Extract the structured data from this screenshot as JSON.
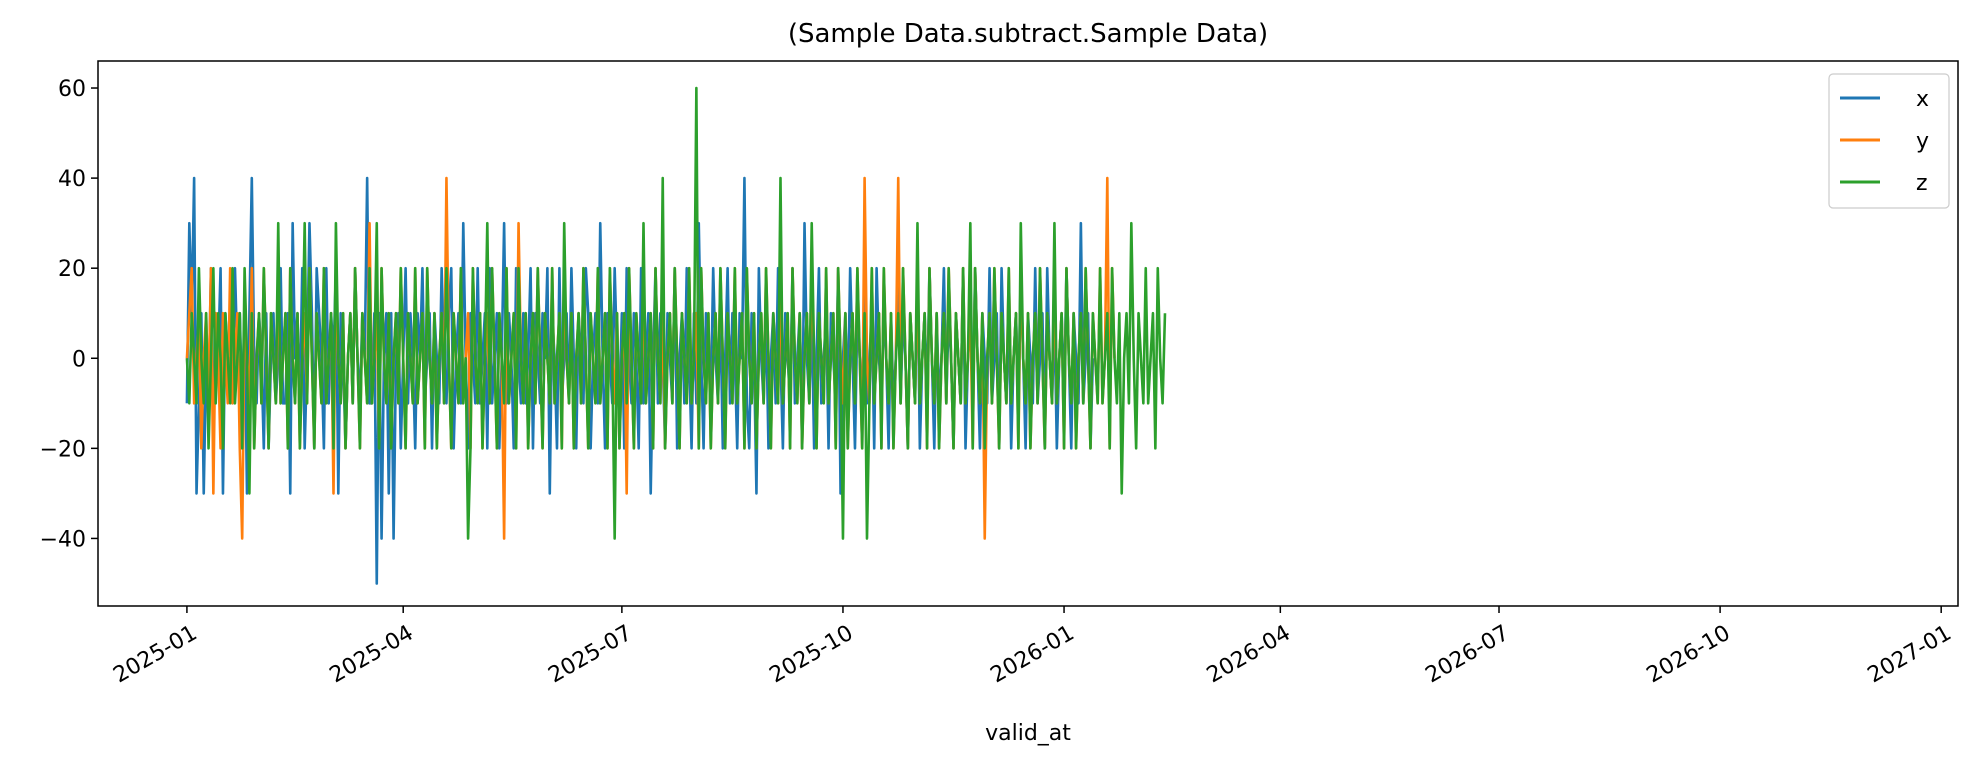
{
  "chart_data": {
    "type": "line",
    "title": "(Sample Data.subtract.Sample Data)",
    "xlabel": "valid_at",
    "ylabel": "",
    "x_start": "2025-01-01",
    "x_end": "2025-12-31",
    "x_frequency": "daily",
    "xlim": [
      "2024-11-25",
      "2027-01-08"
    ],
    "ylim": [
      -55,
      66
    ],
    "x_tick_labels": [
      "2025-01",
      "2025-04",
      "2025-07",
      "2025-10",
      "2026-01",
      "2026-04",
      "2026-07",
      "2026-10",
      "2027-01"
    ],
    "x_tick_dates": [
      "2025-01-01",
      "2025-04-01",
      "2025-07-01",
      "2025-10-01",
      "2026-01-01",
      "2026-04-01",
      "2026-07-01",
      "2026-10-01",
      "2027-01-01"
    ],
    "y_ticks": [
      -40,
      -20,
      0,
      20,
      40,
      60
    ],
    "y_tick_labels": [
      "−40",
      "−20",
      "0",
      "20",
      "40",
      "60"
    ],
    "legend": {
      "position": "top-right",
      "entries": [
        "x",
        "y",
        "z"
      ]
    },
    "grid": false,
    "series": [
      {
        "name": "x",
        "color": "#1f77b4",
        "values": [
          -10,
          30,
          10,
          40,
          -30,
          -10,
          10,
          -30,
          0,
          -10,
          20,
          -20,
          10,
          0,
          20,
          -30,
          10,
          0,
          0,
          -10,
          20,
          0,
          10,
          -10,
          10,
          -30,
          10,
          40,
          0,
          -10,
          10,
          0,
          -20,
          10,
          -20,
          0,
          10,
          -10,
          0,
          20,
          -10,
          -10,
          10,
          -30,
          30,
          0,
          10,
          -10,
          20,
          -20,
          0,
          30,
          10,
          -20,
          20,
          10,
          0,
          -20,
          20,
          -10,
          10,
          0,
          20,
          -30,
          10,
          0,
          -20,
          0,
          10,
          -10,
          20,
          0,
          -10,
          10,
          0,
          40,
          -10,
          -10,
          10,
          -50,
          10,
          -40,
          0,
          10,
          -30,
          10,
          -40,
          0,
          10,
          -20,
          0,
          20,
          -10,
          10,
          0,
          -20,
          10,
          0,
          20,
          -10,
          0,
          10,
          -20,
          10,
          0,
          -10,
          20,
          0,
          -10,
          10,
          20,
          -20,
          0,
          10,
          -10,
          30,
          0,
          -20,
          10,
          0,
          -10,
          20,
          -10,
          0,
          10,
          -20,
          20,
          -10,
          0,
          10,
          -20,
          0,
          30,
          -10,
          10,
          0,
          -20,
          20,
          0,
          -10,
          10,
          -10,
          0,
          20,
          -20,
          10,
          0,
          -10,
          10,
          0,
          20,
          -30,
          10,
          0,
          -20,
          20,
          -10,
          0,
          10,
          -10,
          20,
          0,
          -20,
          10,
          0,
          -10,
          20,
          10,
          -20,
          0,
          10,
          -10,
          30,
          0,
          -20,
          10,
          0,
          -10,
          20,
          0,
          -10,
          10,
          -20,
          20,
          0,
          -10,
          10,
          0,
          -20,
          20,
          -10,
          0,
          10,
          -30,
          0,
          20,
          -10,
          10,
          0,
          -20,
          10,
          0,
          -10,
          20,
          -20,
          0,
          10,
          -10,
          20,
          0,
          -20,
          10,
          -10,
          30,
          0,
          -20,
          10,
          0,
          -10,
          20,
          0,
          -10,
          10,
          -20,
          0,
          20,
          -10,
          10,
          0,
          -20,
          10,
          0,
          40,
          -10,
          -20,
          10,
          0,
          -30,
          20,
          0,
          -10,
          10,
          -20,
          0,
          10,
          -10,
          20,
          0,
          -20,
          10,
          0,
          -10,
          20,
          -10,
          0,
          10,
          -20,
          30,
          0,
          -10,
          10,
          -20,
          0,
          20,
          -10,
          0,
          10,
          -20,
          10,
          0,
          -10,
          20,
          -30,
          0,
          10,
          -10,
          20,
          0,
          -20,
          10,
          0,
          -10,
          20,
          -10,
          0,
          10,
          -20,
          20,
          0,
          -10,
          10,
          0,
          -20,
          10,
          -10,
          0,
          20,
          -10,
          10,
          0,
          -20,
          10,
          0,
          -10,
          20,
          -20,
          0,
          10,
          -10,
          20,
          0,
          -20,
          10,
          -10,
          0,
          20,
          -10,
          10,
          0,
          -20,
          10,
          0,
          -10,
          20,
          -20,
          0,
          10,
          -10,
          20,
          0,
          -20,
          10,
          0,
          -10,
          20,
          -10,
          0,
          10,
          -20,
          20,
          0,
          -10,
          10,
          -20,
          0,
          10,
          -10,
          20,
          0,
          -20,
          10,
          0,
          -10,
          20,
          -10,
          0,
          10,
          -20,
          20,
          0,
          -10,
          10,
          -20,
          0,
          10,
          -10,
          20,
          0,
          -20,
          10,
          0,
          -10,
          30,
          -10,
          0,
          10,
          -20,
          0
        ]
      },
      {
        "name": "y",
        "color": "#ff7f0e",
        "values": [
          0,
          10,
          20,
          -10,
          0,
          10,
          -20,
          0,
          10,
          -10,
          20,
          -30,
          10,
          0,
          -20,
          10,
          0,
          -10,
          20,
          -10,
          0,
          10,
          -20,
          -40,
          10,
          0,
          -10,
          20,
          -20,
          0,
          10,
          -10,
          20,
          0,
          -20,
          10,
          0,
          -10,
          20,
          -10,
          0,
          10,
          -20,
          20,
          0,
          -10,
          10,
          -20,
          0,
          10,
          -10,
          20,
          0,
          -20,
          10,
          0,
          -10,
          20,
          -10,
          0,
          10,
          -30,
          20,
          0,
          -10,
          10,
          -20,
          0,
          10,
          -10,
          20,
          0,
          -20,
          10,
          0,
          -10,
          30,
          -10,
          0,
          10,
          -20,
          20,
          0,
          -10,
          10,
          -20,
          0,
          10,
          -10,
          20,
          0,
          -20,
          10,
          0,
          -10,
          20,
          -10,
          0,
          10,
          -20,
          20,
          0,
          -10,
          10,
          -20,
          0,
          10,
          -10,
          40,
          0,
          -20,
          10,
          0,
          -10,
          20,
          -10,
          0,
          10,
          -20,
          20,
          0,
          -10,
          10,
          -20,
          0,
          10,
          -10,
          20,
          0,
          -20,
          10,
          0,
          -40,
          20,
          -10,
          0,
          10,
          -20,
          30,
          0,
          -10,
          10,
          -20,
          0,
          10,
          -10,
          20,
          0,
          -20,
          10,
          0,
          -10,
          20,
          -10,
          0,
          10,
          -20,
          20,
          0,
          -10,
          10,
          -20,
          0,
          10,
          -10,
          20,
          0,
          -20,
          10,
          0,
          -10,
          20,
          -10,
          0,
          10,
          -20,
          20,
          0,
          -10,
          10,
          -20,
          0,
          10,
          -30,
          20,
          0,
          -20,
          10,
          0,
          -10,
          20,
          -10,
          0,
          10,
          -20,
          20,
          0,
          -10,
          10,
          -20,
          0,
          10,
          -10,
          20,
          0,
          -20,
          10,
          0,
          -10,
          20,
          -10,
          0,
          10,
          -20,
          20,
          0,
          -10,
          10,
          -20,
          0,
          10,
          -10,
          20,
          0,
          -20,
          10,
          0,
          -10,
          20,
          -10,
          0,
          10,
          -20,
          20,
          0,
          -10,
          10,
          -20,
          0,
          10,
          -10,
          20,
          0,
          -20,
          10,
          0,
          -10,
          20,
          -10,
          0,
          10,
          -20,
          20,
          0,
          -10,
          10,
          -20,
          0,
          10,
          -10,
          20,
          0,
          -20,
          10,
          0,
          -10,
          20,
          -10,
          0,
          10,
          -20,
          20,
          0,
          -10,
          10,
          -20,
          0,
          10,
          -10,
          20,
          0,
          -20,
          40,
          0,
          -10,
          20,
          -10,
          0,
          10,
          -20,
          20,
          0,
          -10,
          10,
          -20,
          0,
          40,
          -10,
          20,
          0,
          -20,
          10,
          0,
          -10,
          20,
          -10,
          0,
          10,
          -20,
          20,
          0,
          -10,
          10,
          -20,
          0,
          10,
          -10,
          20,
          0,
          -20,
          10,
          0,
          -10,
          20,
          -10,
          0,
          10,
          -20,
          20,
          0,
          -10,
          10,
          -40,
          0,
          10,
          -10,
          20,
          0,
          -20,
          10,
          0,
          -10,
          20,
          -10,
          0,
          10,
          -20,
          20,
          0,
          -10,
          10,
          -20,
          0,
          10,
          -10,
          20,
          0,
          -20,
          10,
          0,
          -10,
          20,
          -10,
          0,
          10,
          -20,
          20,
          0,
          -10,
          10,
          -20,
          0,
          10,
          -10,
          20,
          0,
          -20,
          10,
          0,
          -10,
          20,
          -10,
          0,
          40,
          -20,
          20,
          0
        ]
      },
      {
        "name": "z",
        "color": "#2ca02c",
        "values": [
          0,
          -10,
          10,
          0,
          -10,
          20,
          0,
          -10,
          10,
          -20,
          0,
          20,
          -10,
          10,
          0,
          -20,
          10,
          0,
          -10,
          20,
          -10,
          0,
          10,
          -20,
          20,
          0,
          -30,
          10,
          -20,
          0,
          10,
          -10,
          20,
          0,
          -20,
          10,
          0,
          -10,
          30,
          -10,
          0,
          10,
          -20,
          20,
          0,
          -10,
          10,
          -20,
          0,
          30,
          -10,
          20,
          0,
          -20,
          10,
          0,
          -10,
          20,
          -10,
          0,
          10,
          -20,
          30,
          0,
          -10,
          10,
          -20,
          0,
          10,
          -10,
          20,
          0,
          -20,
          10,
          0,
          -10,
          20,
          -10,
          0,
          30,
          -20,
          20,
          0,
          -10,
          10,
          -20,
          0,
          10,
          -10,
          20,
          0,
          -20,
          10,
          0,
          -10,
          20,
          -10,
          0,
          10,
          -20,
          20,
          0,
          -10,
          10,
          -20,
          0,
          10,
          -10,
          20,
          0,
          -20,
          10,
          0,
          -10,
          20,
          -10,
          0,
          -40,
          -20,
          20,
          0,
          -10,
          10,
          -20,
          0,
          30,
          -10,
          20,
          0,
          -20,
          10,
          0,
          -10,
          20,
          -10,
          0,
          10,
          -20,
          20,
          0,
          -10,
          10,
          -20,
          0,
          10,
          -10,
          20,
          0,
          -20,
          10,
          0,
          -10,
          20,
          -10,
          0,
          10,
          -20,
          30,
          0,
          -10,
          10,
          -20,
          0,
          10,
          -10,
          20,
          0,
          -20,
          10,
          0,
          -10,
          20,
          -10,
          0,
          10,
          -20,
          20,
          0,
          -40,
          10,
          -20,
          0,
          10,
          -10,
          20,
          0,
          -20,
          10,
          0,
          -10,
          30,
          -10,
          0,
          10,
          -20,
          20,
          0,
          -10,
          40,
          -20,
          0,
          10,
          -10,
          20,
          0,
          -20,
          10,
          0,
          -10,
          20,
          -10,
          0,
          60,
          -20,
          20,
          0,
          -10,
          10,
          -20,
          0,
          10,
          -10,
          20,
          0,
          -20,
          10,
          0,
          -10,
          20,
          -10,
          0,
          10,
          -20,
          20,
          0,
          -10,
          10,
          -20,
          0,
          10,
          -10,
          20,
          0,
          -20,
          10,
          0,
          -10,
          40,
          -10,
          0,
          10,
          -20,
          20,
          0,
          -10,
          10,
          -20,
          0,
          10,
          -10,
          30,
          0,
          -20,
          10,
          0,
          -10,
          20,
          -10,
          0,
          10,
          -20,
          20,
          0,
          -40,
          10,
          -20,
          0,
          10,
          -10,
          20,
          0,
          -20,
          10,
          -40,
          -10,
          20,
          -10,
          0,
          10,
          -20,
          20,
          0,
          -10,
          10,
          -20,
          0,
          10,
          -10,
          20,
          0,
          -20,
          10,
          0,
          -10,
          30,
          -10,
          0,
          10,
          -20,
          20,
          0,
          -10,
          10,
          -20,
          0,
          10,
          -10,
          20,
          0,
          -20,
          10,
          0,
          -10,
          20,
          -10,
          0,
          30,
          -20,
          20,
          0,
          -10,
          10,
          -20,
          0,
          10,
          -10,
          20,
          0,
          -20,
          10,
          0,
          -10,
          20,
          -10,
          0,
          10,
          -20,
          30,
          0,
          -10,
          10,
          -20,
          0,
          10,
          -10,
          20,
          0,
          -20,
          10,
          0,
          -10,
          30,
          -10,
          0,
          10,
          -20,
          20,
          0,
          -10,
          10,
          -20,
          0,
          10,
          -10,
          20,
          0,
          -20,
          10,
          0,
          -10,
          20,
          -10,
          0,
          10,
          -20,
          20,
          0,
          -10,
          10,
          -30,
          0,
          10,
          -10,
          30,
          0,
          -20,
          10,
          0,
          -10,
          20,
          -10,
          0,
          10,
          -20,
          20,
          0,
          -10,
          10
        ]
      }
    ]
  }
}
